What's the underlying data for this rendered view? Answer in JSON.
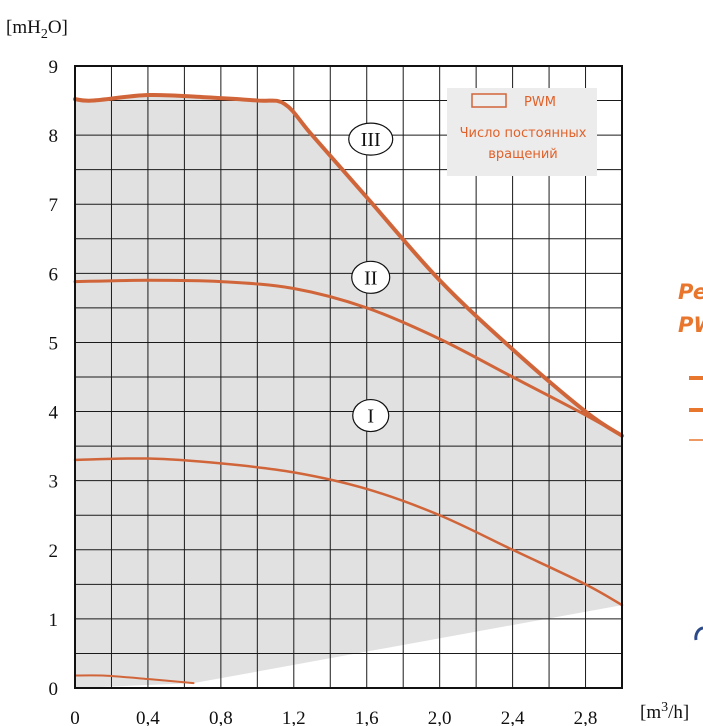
{
  "colors": {
    "curve": "#d1653a",
    "region": "#e1e1e1",
    "legend_text": "#e0622a",
    "grid": "#1a1a1a",
    "side_text": "#e8762d",
    "side_blue": "#2a4a8a"
  },
  "side": {
    "line1": "Pe",
    "line2": "PW"
  },
  "chart_data": {
    "type": "line",
    "ylabel_main": "[mH",
    "ylabel_sub": "2",
    "ylabel_end": "O]",
    "xlabel_main": "[m",
    "xlabel_sup": "3",
    "xlabel_end": "/h]",
    "xlim": [
      0,
      3.0
    ],
    "ylim": [
      0,
      9
    ],
    "x_ticks": [
      0,
      0.4,
      0.8,
      1.2,
      1.6,
      2.0,
      2.4,
      2.8
    ],
    "x_tick_labels": [
      "0",
      "0,4",
      "0,8",
      "1,2",
      "1,6",
      "2,0",
      "2,4",
      "2,8"
    ],
    "y_ticks": [
      0,
      1,
      2,
      3,
      4,
      5,
      6,
      7,
      8,
      9
    ],
    "y_tick_labels": [
      "0",
      "1",
      "2",
      "3",
      "4",
      "5",
      "6",
      "7",
      "8",
      "9"
    ],
    "grid": true,
    "legend": {
      "position": "top-right",
      "items": [
        "PWM",
        "Число постоянных вращений"
      ]
    },
    "series": [
      {
        "name": "III",
        "x": [
          0,
          0.1,
          0.4,
          0.7,
          1.0,
          1.15,
          1.3,
          1.6,
          2.0,
          2.4,
          2.8,
          3.0
        ],
        "y": [
          8.52,
          8.5,
          8.58,
          8.55,
          8.5,
          8.45,
          8.0,
          7.1,
          5.9,
          4.9,
          4.0,
          3.65
        ]
      },
      {
        "name": "II",
        "x": [
          0,
          0.4,
          0.8,
          1.2,
          1.6,
          2.0,
          2.4,
          2.8,
          3.0
        ],
        "y": [
          5.88,
          5.9,
          5.88,
          5.78,
          5.5,
          5.05,
          4.5,
          3.95,
          3.65
        ]
      },
      {
        "name": "I",
        "x": [
          0,
          0.4,
          0.8,
          1.2,
          1.6,
          2.0,
          2.4,
          2.8,
          3.0
        ],
        "y": [
          3.3,
          3.32,
          3.25,
          3.12,
          2.88,
          2.5,
          2.0,
          1.5,
          1.2
        ]
      },
      {
        "name": "",
        "x": [
          0,
          0.15,
          0.4,
          0.65
        ],
        "y": [
          0.18,
          0.18,
          0.13,
          0.07
        ]
      }
    ],
    "pwm_region_bottom": {
      "x": [
        0,
        0.65,
        3.0
      ],
      "y": [
        0,
        0.07,
        1.2
      ]
    }
  }
}
